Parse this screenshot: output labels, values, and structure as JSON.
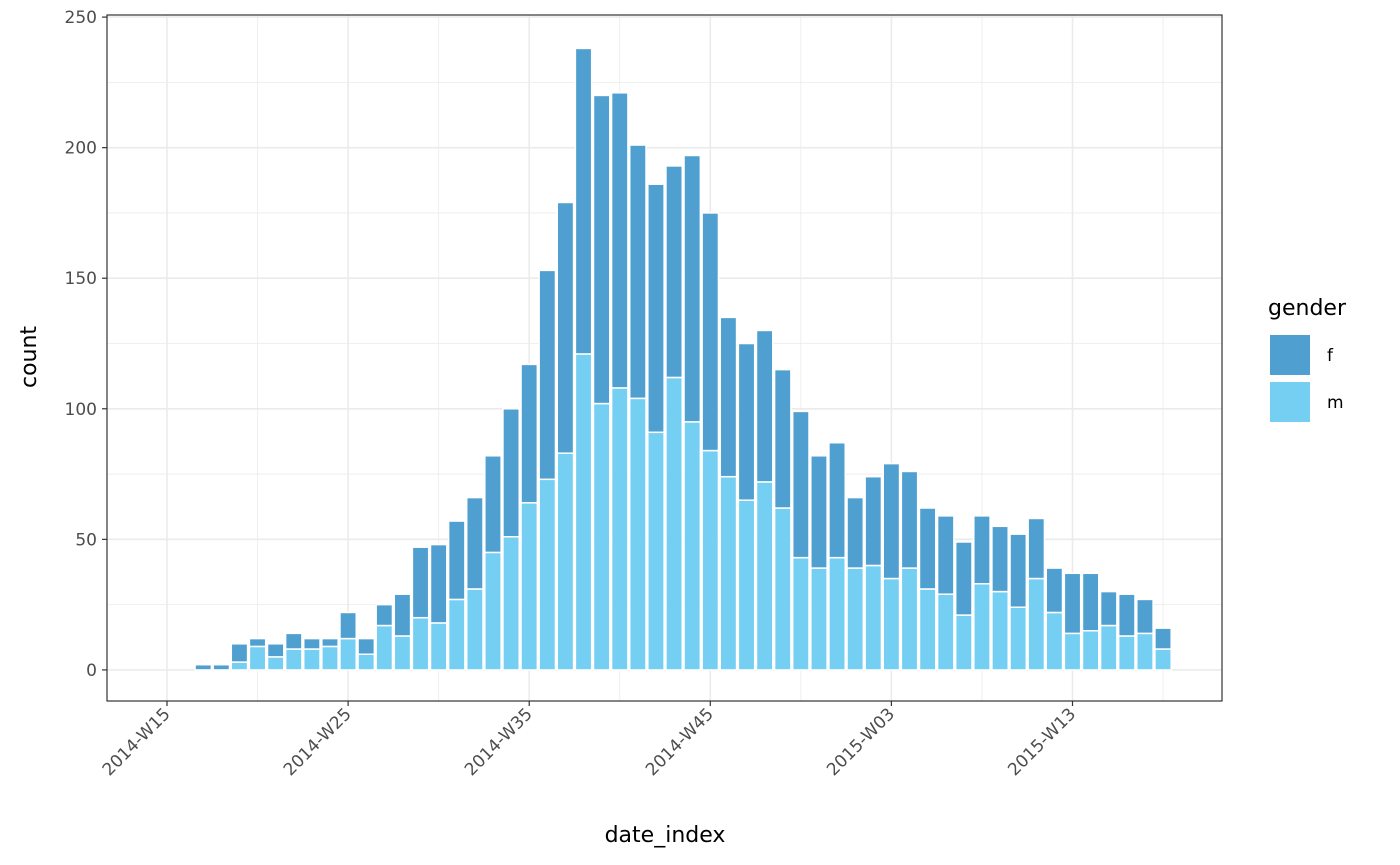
{
  "chart_data": {
    "type": "bar",
    "stacked": true,
    "x_label": "date_index",
    "y_label": "count",
    "categories": [
      "2014-W15",
      null,
      null,
      null,
      null,
      null,
      null,
      null,
      null,
      null,
      "2014-W25",
      null,
      null,
      null,
      null,
      null,
      null,
      null,
      null,
      null,
      "2014-W35",
      null,
      null,
      null,
      null,
      null,
      null,
      null,
      null,
      null,
      "2014-W45",
      null,
      null,
      null,
      null,
      null,
      null,
      null,
      null,
      null,
      "2015-W03",
      null,
      null,
      null,
      null,
      null,
      null,
      null,
      null,
      null,
      "2015-W13",
      null,
      null,
      null,
      null,
      null
    ],
    "series": [
      {
        "name": "f",
        "color": "#4f9fd0",
        "values": [
          0,
          0,
          2,
          2,
          7,
          3,
          5,
          6,
          4,
          3,
          10,
          6,
          8,
          16,
          27,
          30,
          30,
          35,
          37,
          49,
          53,
          80,
          96,
          117,
          118,
          113,
          97,
          95,
          81,
          102,
          91,
          61,
          60,
          58,
          53,
          56,
          43,
          44,
          27,
          34,
          44,
          37,
          31,
          30,
          28,
          26,
          25,
          28,
          23,
          17,
          23,
          22,
          13,
          16,
          13,
          8
        ]
      },
      {
        "name": "m",
        "color": "#74cff3",
        "values": [
          0,
          0,
          0,
          0,
          3,
          9,
          5,
          8,
          8,
          9,
          12,
          6,
          17,
          13,
          20,
          18,
          27,
          31,
          45,
          51,
          64,
          73,
          83,
          121,
          102,
          108,
          104,
          91,
          112,
          95,
          84,
          74,
          65,
          72,
          62,
          43,
          39,
          43,
          39,
          40,
          35,
          39,
          31,
          29,
          21,
          33,
          30,
          24,
          35,
          22,
          14,
          15,
          17,
          13,
          14,
          8
        ]
      }
    ],
    "legend_title": "gender",
    "ylim": [
      -11.9,
      250.8
    ],
    "yticks": [
      0,
      50,
      100,
      150,
      200,
      250
    ],
    "grid": true
  }
}
